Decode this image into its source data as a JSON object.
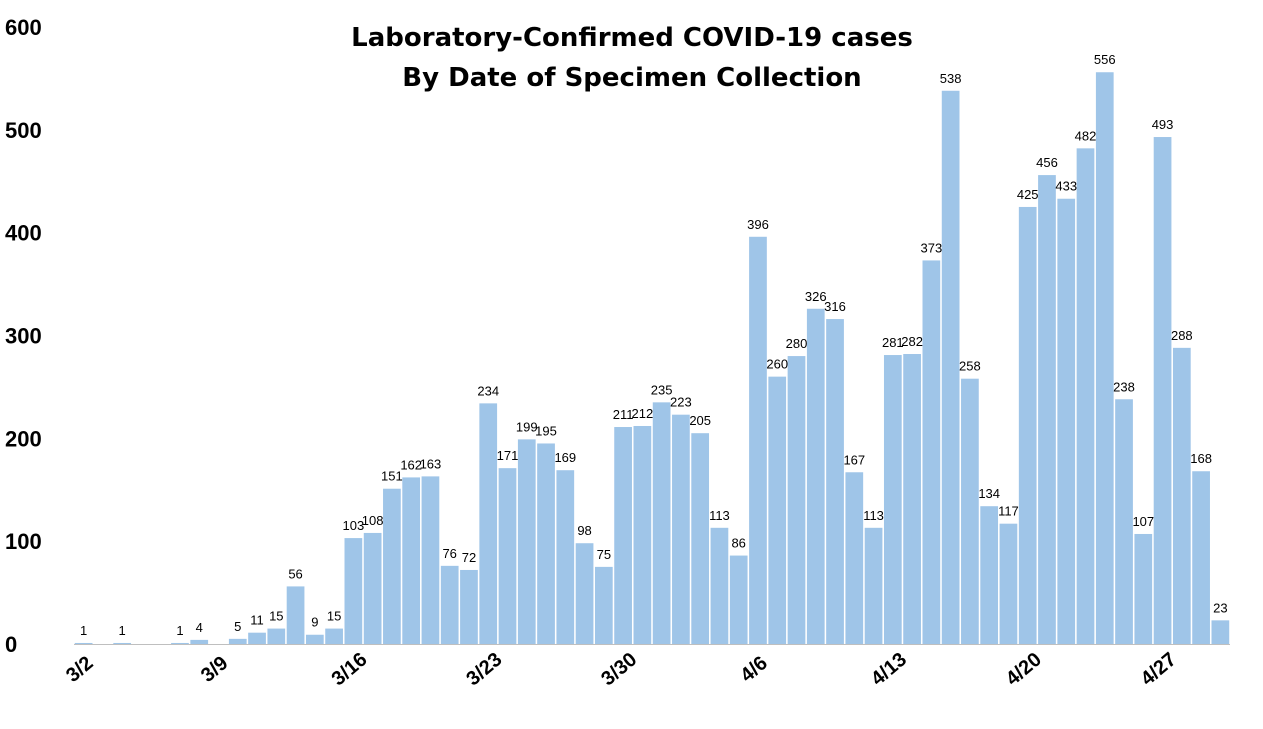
{
  "chart_data": {
    "type": "bar",
    "title": [
      "Laboratory-Confirmed COVID-19 cases",
      "By Date of Specimen Collection"
    ],
    "xlabel": "",
    "ylabel": "",
    "ylim": [
      0,
      600
    ],
    "yticks": [
      0,
      100,
      200,
      300,
      400,
      500,
      600
    ],
    "grid": false,
    "bar_color": "#9fc5e8",
    "xtick_labels": [
      "3/2",
      "3/9",
      "3/16",
      "3/23",
      "3/30",
      "4/6",
      "4/13",
      "4/20",
      "4/27"
    ],
    "xtick_every": 7,
    "categories": [
      "3/2",
      "3/3",
      "3/4",
      "3/5",
      "3/6",
      "3/7",
      "3/8",
      "3/9",
      "3/10",
      "3/11",
      "3/12",
      "3/13",
      "3/14",
      "3/15",
      "3/16",
      "3/17",
      "3/18",
      "3/19",
      "3/20",
      "3/21",
      "3/22",
      "3/23",
      "3/24",
      "3/25",
      "3/26",
      "3/27",
      "3/28",
      "3/29",
      "3/30",
      "3/31",
      "4/1",
      "4/2",
      "4/3",
      "4/4",
      "4/5",
      "4/6",
      "4/7",
      "4/8",
      "4/9",
      "4/10",
      "4/11",
      "4/12",
      "4/13",
      "4/14",
      "4/15",
      "4/16",
      "4/17",
      "4/18",
      "4/19",
      "4/20",
      "4/21",
      "4/22",
      "4/23",
      "4/24",
      "4/25",
      "4/26",
      "4/27",
      "4/28",
      "4/29",
      "4/30"
    ],
    "values": [
      1,
      0,
      1,
      0,
      0,
      1,
      4,
      0,
      5,
      11,
      15,
      56,
      9,
      15,
      103,
      108,
      151,
      162,
      163,
      76,
      72,
      234,
      171,
      199,
      195,
      169,
      98,
      75,
      211,
      212,
      235,
      223,
      205,
      113,
      86,
      396,
      260,
      280,
      326,
      316,
      167,
      113,
      281,
      282,
      373,
      538,
      258,
      134,
      117,
      425,
      456,
      433,
      482,
      556,
      238,
      107,
      493,
      288,
      168,
      23
    ],
    "data_labels": [
      "1",
      "",
      "1",
      "",
      "",
      "1",
      "4",
      "",
      "5",
      "11",
      "15",
      "56",
      "9",
      "15",
      "103",
      "108",
      "151",
      "162",
      "163",
      "76",
      "72",
      "234",
      "171",
      "199",
      "195",
      "169",
      "98",
      "75",
      "211",
      "212",
      "235",
      "223",
      "205",
      "113",
      "86",
      "396",
      "260",
      "280",
      "326",
      "316",
      "167",
      "113",
      "281",
      "282",
      "373",
      "538",
      "258",
      "134",
      "117",
      "425",
      "456",
      "433",
      "482",
      "556",
      "238",
      "107",
      "493",
      "288",
      "168",
      "23"
    ]
  }
}
